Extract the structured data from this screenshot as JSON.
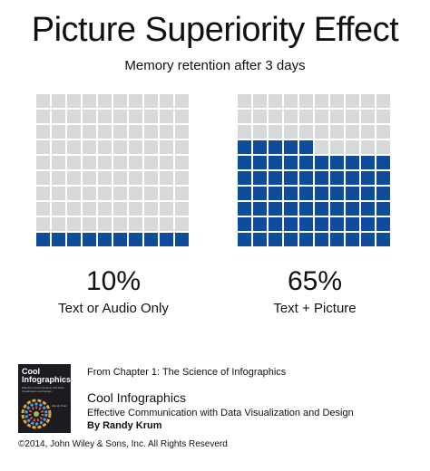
{
  "title": "Picture Superiority Effect",
  "subtitle": "Memory retention after 3 days",
  "colors": {
    "filled": "#0f4c9e",
    "empty": "#d9d9d9"
  },
  "chart_data": {
    "type": "waffle",
    "grid": {
      "rows": 10,
      "cols": 10
    },
    "panels": [
      {
        "label": "Text or Audio Only",
        "value_label": "10%",
        "value": 10
      },
      {
        "label": "Text + Picture",
        "value_label": "65%",
        "value": 65
      }
    ]
  },
  "footer": {
    "book_cover_title": "Cool Infographics",
    "book_cover_subtitle": "Effective Communication with Data Visualization and Design",
    "book_cover_author": "Randy Krum",
    "chapter": "From Chapter 1: The Science of Infographics",
    "book_name": "Cool Infographics",
    "book_desc": "Effective Communication with Data Visualization and Design",
    "book_by": "By Randy Krum",
    "copyright": "©2014, John Wiley & Sons, Inc. All Rights Reseverd"
  }
}
